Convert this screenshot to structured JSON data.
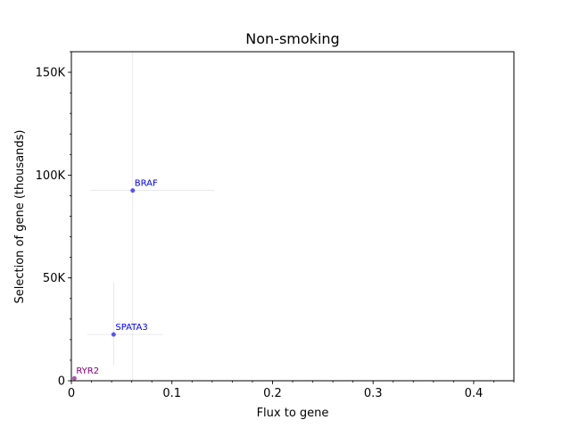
{
  "chart_data": {
    "type": "scatter",
    "title": "Non-smoking",
    "xlabel": "Flux to gene",
    "ylabel": "Selection of gene (thousands)",
    "xlim": [
      0,
      0.44
    ],
    "ylim": [
      0,
      160000
    ],
    "x_ticks": [
      {
        "value": 0,
        "label": "0"
      },
      {
        "value": 0.1,
        "label": "0.1"
      },
      {
        "value": 0.2,
        "label": "0.2"
      },
      {
        "value": 0.3,
        "label": "0.3"
      },
      {
        "value": 0.4,
        "label": "0.4"
      }
    ],
    "y_ticks": [
      {
        "value": 0,
        "label": "0"
      },
      {
        "value": 50000,
        "label": "50K"
      },
      {
        "value": 100000,
        "label": "100K"
      },
      {
        "value": 150000,
        "label": "150K"
      }
    ],
    "x_minor_step": 0.02,
    "y_minor_step": 10000,
    "grid": false,
    "points": [
      {
        "label": "BRAF",
        "x": 0.061,
        "y": 92500,
        "x_err": [
          0.019,
          0.142
        ],
        "y_err": [
          0,
          160000
        ],
        "color": "#0000ff"
      },
      {
        "label": "SPATA3",
        "x": 0.042,
        "y": 22500,
        "x_err": [
          0.016,
          0.091
        ],
        "y_err": [
          7500,
          48000
        ],
        "color": "#0000ff"
      },
      {
        "label": "RYR2",
        "x": 0.003,
        "y": 1200,
        "x_err": null,
        "y_err": null,
        "color": "#800080"
      }
    ]
  }
}
